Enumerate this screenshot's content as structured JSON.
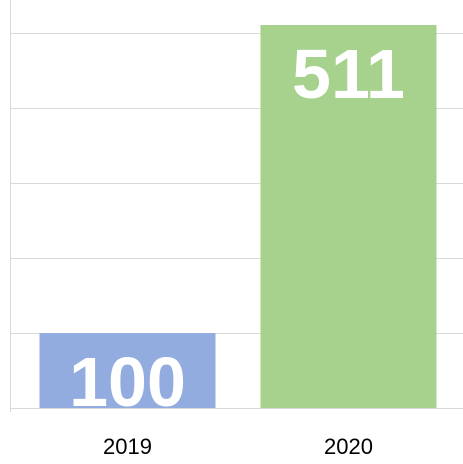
{
  "chart_data": {
    "type": "bar",
    "categories": [
      "2019",
      "2020"
    ],
    "values": [
      100,
      511
    ],
    "data_labels": [
      "100",
      "511"
    ],
    "colors": [
      "#92ace0",
      "#a7d28d"
    ],
    "label_color": "#ffffff",
    "gridline_color": "#d9d9d9",
    "axis_color": "#d9d9d9",
    "title": "",
    "xlabel": "",
    "ylabel": "",
    "ylim": [
      0,
      500
    ],
    "grid": true,
    "legend": "none"
  }
}
